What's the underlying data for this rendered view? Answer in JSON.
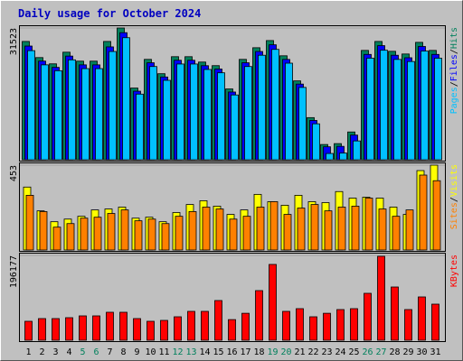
{
  "chart_data": [
    {
      "type": "bar",
      "title": "Daily usage for October 2024",
      "ylim": [
        0,
        31523
      ],
      "yticks": [
        31523
      ],
      "grid": true,
      "series": [
        {
          "name": "Hits",
          "color": "#00805c",
          "values": [
            28301,
            24442,
            22941,
            25728,
            23584,
            23584,
            28301,
            31523,
            17152,
            24013,
            20582,
            24656,
            24656,
            23370,
            22512,
            16938,
            24013,
            26800,
            28515,
            24870,
            18867,
            10077,
            3645,
            3859,
            6646,
            26157,
            28301,
            25942,
            25299,
            28086,
            26157
          ]
        },
        {
          "name": "Files",
          "color": "#0000ff",
          "values": [
            27200,
            23600,
            22100,
            24800,
            22700,
            22700,
            27000,
            30400,
            16400,
            23200,
            19800,
            23800,
            23800,
            22500,
            21700,
            16200,
            23200,
            25900,
            27500,
            24000,
            18100,
            9400,
            3100,
            3200,
            5900,
            25200,
            27300,
            25000,
            24400,
            27100,
            25200
          ]
        },
        {
          "name": "Pages",
          "color": "#00c0ff",
          "values": [
            26100,
            22700,
            21300,
            23900,
            21800,
            21800,
            25900,
            29200,
            15700,
            22300,
            19000,
            22900,
            22900,
            21600,
            20800,
            15500,
            22300,
            25000,
            26400,
            23100,
            17300,
            8600,
            1500,
            1600,
            4500,
            24300,
            26200,
            24000,
            23500,
            26000,
            24300
          ]
        }
      ]
    },
    {
      "type": "bar",
      "ylim": [
        0,
        453
      ],
      "yticks": [
        453
      ],
      "grid": true,
      "series": [
        {
          "name": "Visits",
          "color": "#ffff00",
          "values": [
            336,
            209,
            151,
            165,
            180,
            214,
            219,
            229,
            170,
            175,
            151,
            200,
            243,
            263,
            234,
            190,
            214,
            297,
            258,
            239,
            292,
            258,
            253,
            312,
            277,
            282,
            277,
            229,
            190,
            424,
            453
          ]
        },
        {
          "name": "Sites",
          "color": "#ff8000",
          "values": [
            292,
            205,
            122,
            141,
            170,
            175,
            195,
            214,
            156,
            165,
            141,
            180,
            205,
            229,
            219,
            165,
            180,
            229,
            258,
            190,
            224,
            243,
            209,
            229,
            234,
            277,
            219,
            180,
            214,
            400,
            370
          ]
        }
      ]
    },
    {
      "type": "bar",
      "ylim": [
        0,
        196177
      ],
      "yticks": [
        196177
      ],
      "grid": true,
      "categories": [
        "1",
        "2",
        "3",
        "4",
        "5",
        "6",
        "7",
        "8",
        "9",
        "10",
        "11",
        "12",
        "13",
        "14",
        "15",
        "16",
        "17",
        "18",
        "19",
        "20",
        "21",
        "22",
        "23",
        "24",
        "25",
        "26",
        "27",
        "28",
        "29",
        "30",
        "31"
      ],
      "category_colors": [
        "#000000",
        "#000000",
        "#000000",
        "#000000",
        "#00805c",
        "#00805c",
        "#000000",
        "#000000",
        "#000000",
        "#000000",
        "#000000",
        "#00805c",
        "#00805c",
        "#000000",
        "#000000",
        "#000000",
        "#000000",
        "#000000",
        "#00805c",
        "#00805c",
        "#000000",
        "#000000",
        "#000000",
        "#000000",
        "#000000",
        "#00805c",
        "#00805c",
        "#000000",
        "#000000",
        "#000000",
        "#000000"
      ],
      "series": [
        {
          "name": "KBytes",
          "color": "#ff0000",
          "values": [
            43830,
            50090,
            50090,
            52180,
            56350,
            56350,
            64700,
            64700,
            50090,
            43830,
            45910,
            54260,
            66790,
            66790,
            91830,
            47740,
            62350,
            114790,
            175310,
            66790,
            73050,
            54260,
            62350,
            70960,
            73050,
            108530,
            194090,
            123130,
            70960,
            100180,
            83480
          ]
        }
      ]
    }
  ]
}
